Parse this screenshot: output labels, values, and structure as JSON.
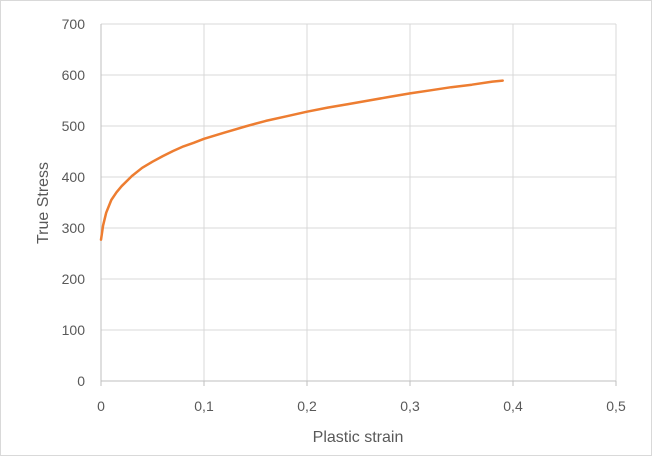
{
  "chart_data": {
    "type": "line",
    "title": "",
    "xlabel": "Plastic strain",
    "ylabel": "True Stress",
    "xlim": [
      0,
      0.5
    ],
    "ylim": [
      0,
      700
    ],
    "x_ticks": [
      0,
      0.1,
      0.2,
      0.3,
      0.4,
      0.5
    ],
    "y_ticks": [
      0,
      100,
      200,
      300,
      400,
      500,
      600,
      700
    ],
    "x_tick_labels": [
      "0",
      "0,1",
      "0,2",
      "0,3",
      "0,4",
      "0,5"
    ],
    "y_tick_labels": [
      "0",
      "100",
      "200",
      "300",
      "400",
      "500",
      "600",
      "700"
    ],
    "grid": true,
    "legend": "none",
    "series": [
      {
        "color": "#ED7D31",
        "x": [
          0,
          0.002,
          0.005,
          0.01,
          0.015,
          0.02,
          0.03,
          0.04,
          0.05,
          0.06,
          0.07,
          0.08,
          0.09,
          0.1,
          0.12,
          0.14,
          0.16,
          0.18,
          0.2,
          0.22,
          0.24,
          0.26,
          0.28,
          0.3,
          0.32,
          0.34,
          0.36,
          0.38,
          0.39
        ],
        "y": [
          277,
          305,
          330,
          355,
          370,
          382,
          402,
          418,
          430,
          441,
          451,
          460,
          467,
          475,
          487,
          499,
          510,
          519,
          528,
          536,
          543,
          550,
          557,
          564,
          570,
          576,
          581,
          587,
          589
        ]
      }
    ]
  }
}
